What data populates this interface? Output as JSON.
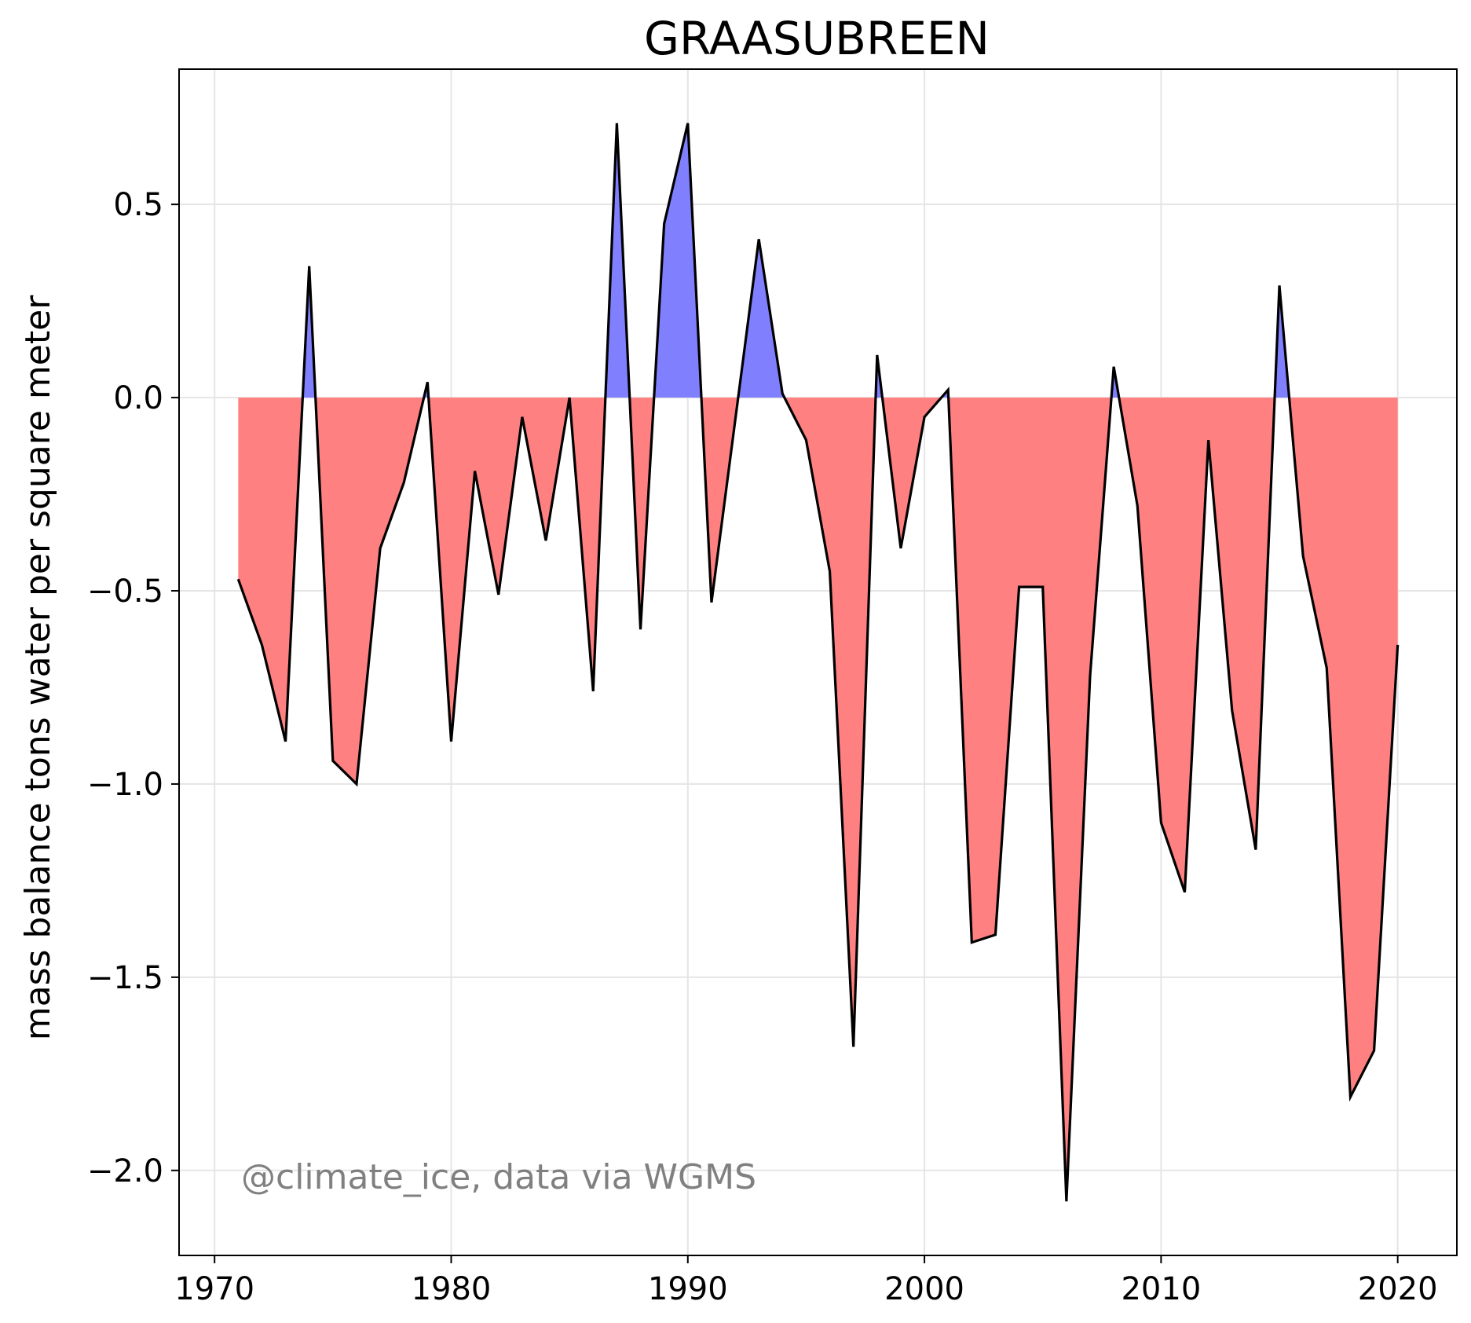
{
  "chart_data": {
    "type": "area",
    "title": "GRAASUBREEN",
    "xlabel": "",
    "ylabel": "mass balance tons water per square meter",
    "annotation": "@climate_ice, data via WGMS",
    "xlim": [
      1968.5,
      2022.5
    ],
    "ylim": [
      -2.22,
      0.85
    ],
    "x_ticks": [
      1970,
      1980,
      1990,
      2000,
      2010,
      2020
    ],
    "y_ticks": [
      -2.0,
      -1.5,
      -1.0,
      -0.5,
      0.0,
      0.5
    ],
    "y_tick_labels": [
      "−2.0",
      "−1.5",
      "−1.0",
      "−0.5",
      "0.0",
      "0.5"
    ],
    "grid": true,
    "colors": {
      "positive_fill": "#8080ff",
      "negative_fill": "#ff8080",
      "line": "#000000",
      "grid": "#e5e5e5",
      "annotation": "#808080"
    },
    "x": [
      1971,
      1972,
      1973,
      1974,
      1975,
      1976,
      1977,
      1978,
      1979,
      1980,
      1981,
      1982,
      1983,
      1984,
      1985,
      1986,
      1987,
      1988,
      1989,
      1990,
      1991,
      1992,
      1993,
      1994,
      1995,
      1996,
      1997,
      1998,
      1999,
      2000,
      2001,
      2002,
      2003,
      2004,
      2005,
      2006,
      2007,
      2008,
      2009,
      2010,
      2011,
      2012,
      2013,
      2014,
      2015,
      2016,
      2017,
      2018,
      2019,
      2020
    ],
    "y": [
      -0.47,
      -0.64,
      -0.89,
      0.34,
      -0.94,
      -1.0,
      -0.39,
      -0.22,
      0.04,
      -0.89,
      -0.19,
      -0.51,
      -0.05,
      -0.37,
      0.0,
      -0.76,
      0.71,
      -0.6,
      0.45,
      0.71,
      -0.53,
      -0.06,
      0.41,
      0.01,
      -0.11,
      -0.45,
      -1.68,
      0.11,
      -0.39,
      -0.05,
      0.02,
      -1.41,
      -1.39,
      -0.49,
      -0.49,
      -2.08,
      -0.72,
      0.08,
      -0.28,
      -1.1,
      -1.28,
      -0.11,
      -0.81,
      -1.17,
      0.29,
      -0.41,
      -0.7,
      -1.81,
      -1.69,
      -0.64
    ]
  }
}
